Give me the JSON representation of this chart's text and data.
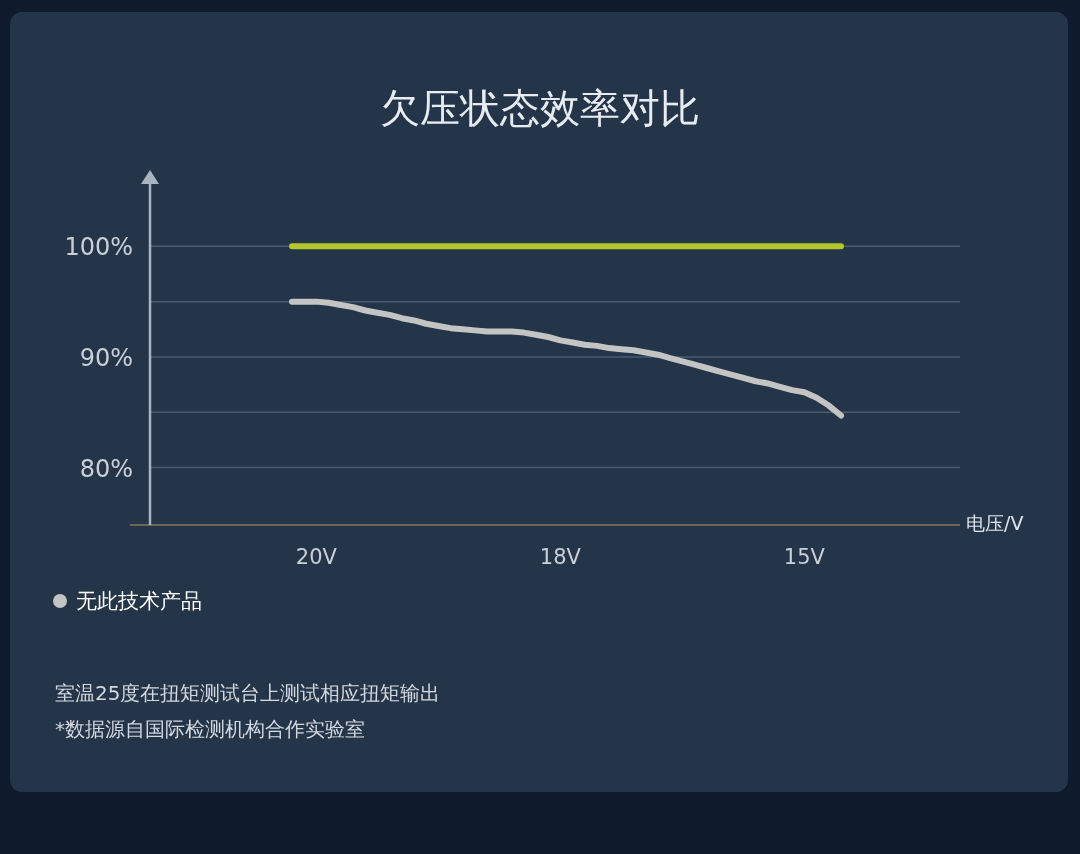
{
  "chart_data": {
    "type": "line",
    "title": "欠压状态效率对比",
    "categories": [
      null,
      null,
      "20V",
      null,
      null,
      null,
      null,
      null,
      null,
      null,
      null,
      null,
      null,
      null,
      null,
      null,
      null,
      null,
      null,
      null,
      null,
      null,
      "18V",
      null,
      null,
      null,
      null,
      null,
      null,
      null,
      null,
      null,
      null,
      null,
      null,
      null,
      null,
      null,
      null,
      null,
      null,
      null,
      "15V",
      null,
      null,
      null
    ],
    "series": [
      {
        "color": "#b3c72c",
        "values": [
          100,
          100,
          100,
          100,
          100,
          100,
          100,
          100,
          100,
          100,
          100,
          100,
          100,
          100,
          100,
          100,
          100,
          100,
          100,
          100,
          100,
          100,
          100,
          100,
          100,
          100,
          100,
          100,
          100,
          100,
          100,
          100,
          100,
          100,
          100,
          100,
          100,
          100,
          100,
          100,
          100,
          100,
          100,
          100,
          100,
          100
        ]
      },
      {
        "name": "无此技术产品",
        "color": "#c4c4c4",
        "values": [
          95.0,
          95.0,
          95.0,
          94.9,
          94.7,
          94.5,
          94.2,
          94.0,
          93.8,
          93.5,
          93.3,
          93.0,
          92.8,
          92.6,
          92.5,
          92.4,
          92.3,
          92.3,
          92.3,
          92.2,
          92.0,
          91.8,
          91.5,
          91.3,
          91.1,
          91.0,
          90.8,
          90.7,
          90.6,
          90.4,
          90.2,
          89.9,
          89.6,
          89.3,
          89.0,
          88.7,
          88.4,
          88.1,
          87.8,
          87.6,
          87.3,
          87.0,
          86.8,
          86.3,
          85.6,
          84.7
        ]
      }
    ],
    "ylim": [
      74.8,
      106
    ],
    "yticks": [
      {
        "value": 80,
        "label": "80%"
      },
      {
        "value": 85,
        "label": null
      },
      {
        "value": 90,
        "label": "90%"
      },
      {
        "value": 95,
        "label": null
      },
      {
        "value": 100,
        "label": "100%"
      }
    ],
    "grid": "y",
    "legend": "bottom left",
    "marker": "none",
    "line_style": "solid",
    "annotations": [
      "电压/V",
      "室温25度在扭矩测试台上测试相应扭矩输出",
      "*数据源自国际检测机构合作实验室"
    ]
  }
}
